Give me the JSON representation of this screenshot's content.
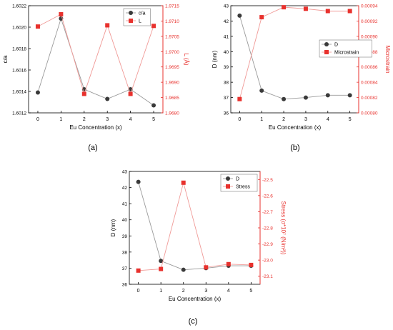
{
  "colors": {
    "series_black": "#3a3a3a",
    "series_red": "#e8312d",
    "axis": "#000000",
    "axis_red": "#e8312d"
  },
  "chart_data": [
    {
      "type": "line",
      "panel_label": "(a)",
      "xlabel": "Eu Concentration (x)",
      "ylabel": "c/a",
      "ylabel_right": "L (Å)",
      "x": [
        0,
        1,
        2,
        3,
        4,
        5
      ],
      "xlim": [
        -0.4,
        5.4
      ],
      "ylim": [
        1.6012,
        1.6022
      ],
      "ylim_right": [
        1.968,
        1.9715
      ],
      "yticks": [
        "1.6012",
        "1.6014",
        "1.6016",
        "1.6018",
        "1.6020",
        "1.6022"
      ],
      "yticks_right": [
        "1.9680",
        "1.9685",
        "1.9690",
        "1.9695",
        "1.9700",
        "1.9705",
        "1.9710",
        "1.9715"
      ],
      "legend_position": "top-right",
      "series": [
        {
          "name": "c/a",
          "axis": "left",
          "marker": "circle",
          "color": "#3a3a3a",
          "values": [
            1.60139,
            1.60208,
            1.60142,
            1.60133,
            1.60142,
            1.60127
          ]
        },
        {
          "name": "L",
          "axis": "right",
          "marker": "square",
          "color": "#e8312d",
          "values": [
            1.97082,
            1.97122,
            1.96862,
            1.97086,
            1.96862,
            1.97084
          ]
        }
      ]
    },
    {
      "type": "line",
      "panel_label": "(b)",
      "xlabel": "Eu Concentration (x)",
      "ylabel": "D (nm)",
      "ylabel_right": "Microstrain",
      "x": [
        0,
        1,
        2,
        3,
        4,
        5
      ],
      "xlim": [
        -0.4,
        5.4
      ],
      "ylim": [
        36,
        43
      ],
      "ylim_right": [
        0.0008,
        0.00094
      ],
      "yticks": [
        "36",
        "37",
        "38",
        "39",
        "40",
        "41",
        "42",
        "43"
      ],
      "yticks_right": [
        "0.00080",
        "0.00082",
        "0.00084",
        "0.00086",
        "0.00088",
        "0.00090",
        "0.00092",
        "0.00094"
      ],
      "legend_position": "right",
      "series": [
        {
          "name": "D",
          "axis": "left",
          "marker": "circle",
          "color": "#3a3a3a",
          "values": [
            42.35,
            37.45,
            36.9,
            37.0,
            37.15,
            37.15
          ]
        },
        {
          "name": "Microstrain",
          "axis": "right",
          "marker": "square",
          "color": "#e8312d",
          "values": [
            0.000818,
            0.000925,
            0.000938,
            0.000936,
            0.000933,
            0.000933
          ]
        }
      ]
    },
    {
      "type": "line",
      "panel_label": "(c)",
      "xlabel": "Eu Concentration (x)",
      "ylabel": "D (nm)",
      "ylabel_right": "Stress (σ*10⁷ (N/m²))",
      "x": [
        0,
        1,
        2,
        3,
        4,
        5
      ],
      "xlim": [
        -0.4,
        5.4
      ],
      "ylim": [
        36,
        43
      ],
      "ylim_right": [
        -23.15,
        -22.45
      ],
      "yticks": [
        "36",
        "37",
        "38",
        "39",
        "40",
        "41",
        "42",
        "43"
      ],
      "yticks_right": [
        "-22.5",
        "-22.6",
        "-22.7",
        "-22.8",
        "-22.9",
        "-23.0",
        "-23.1"
      ],
      "legend_position": "top-right",
      "series": [
        {
          "name": "D",
          "axis": "left",
          "marker": "circle",
          "color": "#3a3a3a",
          "values": [
            42.35,
            37.45,
            36.9,
            37.0,
            37.15,
            37.15
          ]
        },
        {
          "name": "Stress",
          "axis": "right",
          "marker": "square",
          "color": "#e8312d",
          "values": [
            -23.065,
            -23.055,
            -22.52,
            -23.045,
            -23.025,
            -23.03
          ]
        }
      ]
    }
  ]
}
